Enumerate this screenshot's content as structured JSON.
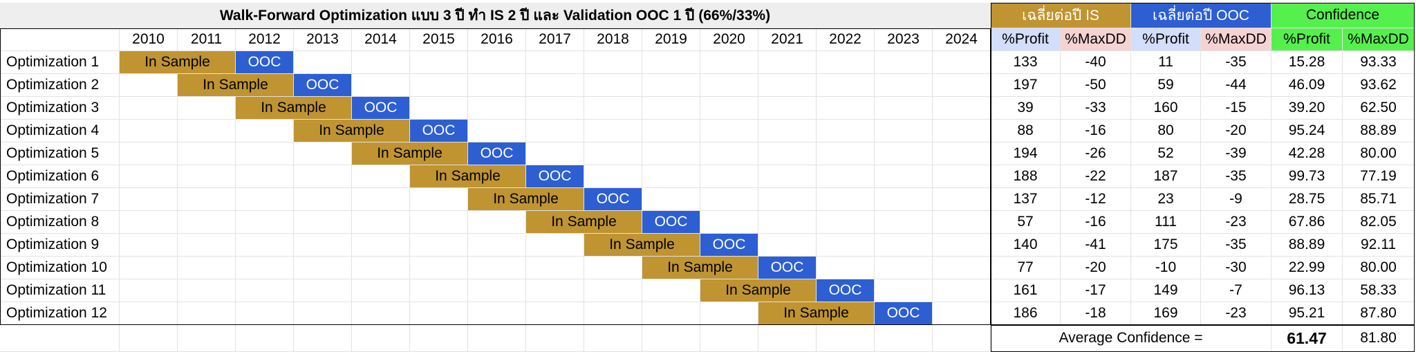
{
  "title": "Walk-Forward Optimization แบบ 3 ปี ทำ IS 2 ปี และ Validation OOC 1 ปี (66%/33%)",
  "years": [
    "2010",
    "2011",
    "2012",
    "2013",
    "2014",
    "2015",
    "2016",
    "2017",
    "2018",
    "2019",
    "2020",
    "2021",
    "2022",
    "2023",
    "2024"
  ],
  "groups": {
    "is_avg": "เฉลี่ยต่อปี IS",
    "ooc_avg": "เฉลี่ยต่อปี OOC",
    "confidence": "Confidence"
  },
  "subheaders": {
    "profit": "%Profit",
    "maxdd": "%MaxDD"
  },
  "bar_labels": {
    "in_sample": "In Sample",
    "ooc": "OOC"
  },
  "rows": [
    {
      "label": "Optimization 1",
      "is_start": 0,
      "is_profit": "133",
      "is_dd": "-40",
      "ooc_profit": "11",
      "ooc_dd": "-35",
      "conf_profit": "15.28",
      "conf_dd": "93.33"
    },
    {
      "label": "Optimization 2",
      "is_start": 1,
      "is_profit": "197",
      "is_dd": "-50",
      "ooc_profit": "59",
      "ooc_dd": "-44",
      "conf_profit": "46.09",
      "conf_dd": "93.62"
    },
    {
      "label": "Optimization 3",
      "is_start": 2,
      "is_profit": "39",
      "is_dd": "-33",
      "ooc_profit": "160",
      "ooc_dd": "-15",
      "conf_profit": "39.20",
      "conf_dd": "62.50"
    },
    {
      "label": "Optimization 4",
      "is_start": 3,
      "is_profit": "88",
      "is_dd": "-16",
      "ooc_profit": "80",
      "ooc_dd": "-20",
      "conf_profit": "95.24",
      "conf_dd": "88.89"
    },
    {
      "label": "Optimization 5",
      "is_start": 4,
      "is_profit": "194",
      "is_dd": "-26",
      "ooc_profit": "52",
      "ooc_dd": "-39",
      "conf_profit": "42.28",
      "conf_dd": "80.00"
    },
    {
      "label": "Optimization 6",
      "is_start": 5,
      "is_profit": "188",
      "is_dd": "-22",
      "ooc_profit": "187",
      "ooc_dd": "-35",
      "conf_profit": "99.73",
      "conf_dd": "77.19"
    },
    {
      "label": "Optimization 7",
      "is_start": 6,
      "is_profit": "137",
      "is_dd": "-12",
      "ooc_profit": "23",
      "ooc_dd": "-9",
      "conf_profit": "28.75",
      "conf_dd": "85.71"
    },
    {
      "label": "Optimization 8",
      "is_start": 7,
      "is_profit": "57",
      "is_dd": "-16",
      "ooc_profit": "111",
      "ooc_dd": "-23",
      "conf_profit": "67.86",
      "conf_dd": "82.05"
    },
    {
      "label": "Optimization 9",
      "is_start": 8,
      "is_profit": "140",
      "is_dd": "-41",
      "ooc_profit": "175",
      "ooc_dd": "-35",
      "conf_profit": "88.89",
      "conf_dd": "92.11"
    },
    {
      "label": "Optimization 10",
      "is_start": 9,
      "is_profit": "77",
      "is_dd": "-20",
      "ooc_profit": "-10",
      "ooc_dd": "-30",
      "conf_profit": "22.99",
      "conf_dd": "80.00"
    },
    {
      "label": "Optimization 11",
      "is_start": 10,
      "is_profit": "161",
      "is_dd": "-17",
      "ooc_profit": "149",
      "ooc_dd": "-7",
      "conf_profit": "96.13",
      "conf_dd": "58.33"
    },
    {
      "label": "Optimization 12",
      "is_start": 11,
      "is_profit": "186",
      "is_dd": "-18",
      "ooc_profit": "169",
      "ooc_dd": "-23",
      "conf_profit": "95.21",
      "conf_dd": "87.80"
    }
  ],
  "footer": {
    "label": "Average Confidence =",
    "avg_profit": "61.47",
    "avg_dd": "81.80"
  }
}
